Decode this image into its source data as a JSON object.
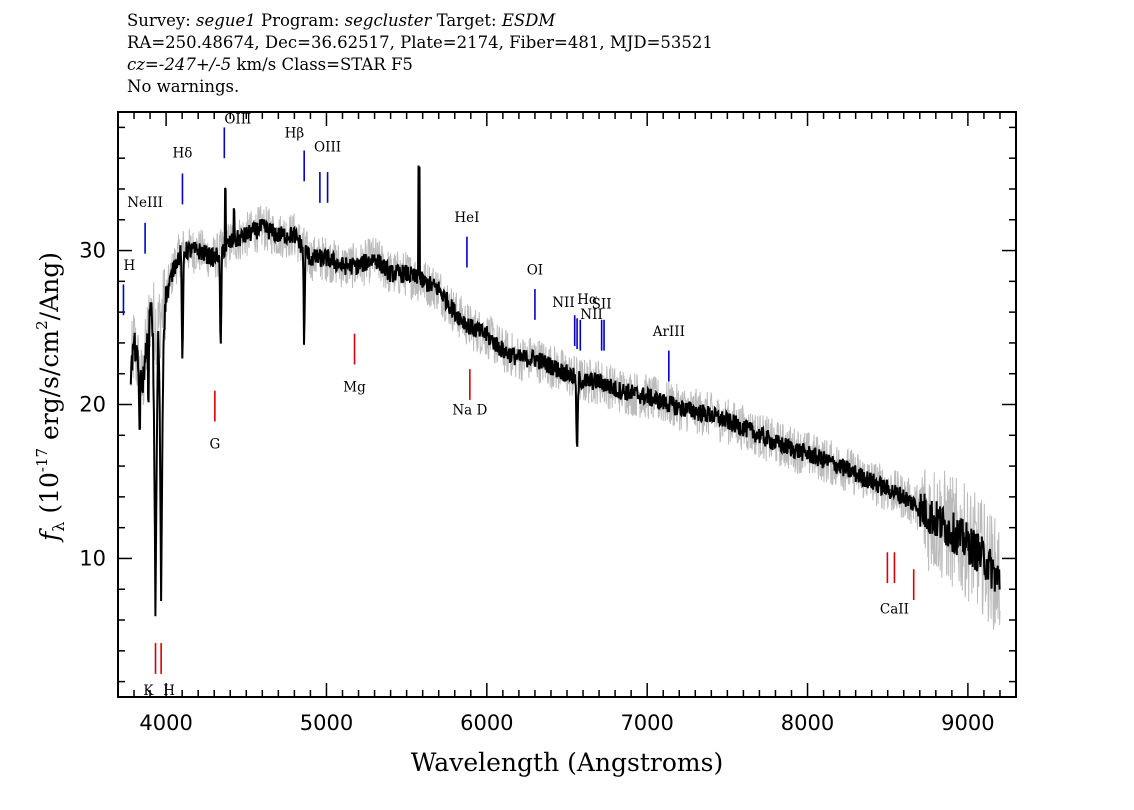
{
  "header": {
    "survey_label": "Survey:",
    "survey": "segue1",
    "program_label": "Program:",
    "program": "segcluster",
    "target_label": "Target:",
    "target": "ESDM",
    "line2": "RA=250.48674, Dec=36.62517, Plate=2174, Fiber=481, MJD=53521",
    "cz_label": "cz=",
    "cz": "-247+/-5",
    "line3_rest": " km/s Class=STAR F5",
    "line4": "No warnings."
  },
  "chart_data": {
    "type": "line",
    "xlabel": "Wavelength (Angstroms)",
    "ylabel": "f_λ (10^-17 erg/s/cm^2/Ang)",
    "ylabel_parts": {
      "symbol": "f",
      "sub": "λ",
      "pre": " (10",
      "exp": "-17",
      "mid": " erg/s/cm",
      "exp2": "2",
      "post": "/Ang)"
    },
    "xlim": [
      3700,
      9300
    ],
    "ylim": [
      1,
      39
    ],
    "xticks": [
      4000,
      5000,
      6000,
      7000,
      8000,
      9000
    ],
    "yticks": [
      10,
      20,
      30
    ],
    "x_tick_labels": [
      "4000",
      "5000",
      "6000",
      "7000",
      "8000",
      "9000"
    ],
    "y_tick_labels": [
      "10",
      "20",
      "30"
    ],
    "series": [
      {
        "style": "gray-noise",
        "color": "#bbbbbb",
        "anchors": [
          [
            3780,
            22
          ],
          [
            3800,
            24
          ],
          [
            3850,
            21
          ],
          [
            3900,
            26
          ],
          [
            3950,
            25
          ],
          [
            4000,
            27
          ],
          [
            4050,
            29
          ],
          [
            4100,
            30
          ],
          [
            4200,
            30
          ],
          [
            4300,
            29.5
          ],
          [
            4400,
            30.5
          ],
          [
            4500,
            31
          ],
          [
            4600,
            31.5
          ],
          [
            4700,
            31
          ],
          [
            4800,
            31
          ],
          [
            4900,
            29.5
          ],
          [
            5000,
            29.5
          ],
          [
            5100,
            29
          ],
          [
            5200,
            29
          ],
          [
            5300,
            29.5
          ],
          [
            5400,
            28.5
          ],
          [
            5500,
            28.5
          ],
          [
            5600,
            28
          ],
          [
            5700,
            27.5
          ],
          [
            5800,
            26
          ],
          [
            5900,
            25
          ],
          [
            6000,
            24.5
          ],
          [
            6100,
            23.5
          ],
          [
            6200,
            23
          ],
          [
            6300,
            23
          ],
          [
            6400,
            22.5
          ],
          [
            6500,
            22
          ],
          [
            6600,
            21.5
          ],
          [
            6700,
            21.5
          ],
          [
            6800,
            21
          ],
          [
            7000,
            20.5
          ],
          [
            7200,
            19.8
          ],
          [
            7400,
            19.3
          ],
          [
            7600,
            18.5
          ],
          [
            7800,
            17.5
          ],
          [
            8000,
            16.8
          ],
          [
            8200,
            16
          ],
          [
            8400,
            15
          ],
          [
            8600,
            14
          ],
          [
            8800,
            12.5
          ],
          [
            9000,
            11
          ],
          [
            9100,
            10
          ],
          [
            9200,
            8.5
          ]
        ],
        "noise_amplitude": 1.5
      },
      {
        "style": "black-flux",
        "color": "#000000",
        "anchors": [
          [
            3780,
            22
          ],
          [
            3800,
            24
          ],
          [
            3850,
            21
          ],
          [
            3900,
            26
          ],
          [
            3950,
            25
          ],
          [
            4000,
            27
          ],
          [
            4050,
            29
          ],
          [
            4100,
            30
          ],
          [
            4200,
            30
          ],
          [
            4300,
            29.5
          ],
          [
            4400,
            30.5
          ],
          [
            4500,
            31
          ],
          [
            4600,
            31.5
          ],
          [
            4700,
            31
          ],
          [
            4800,
            31
          ],
          [
            4900,
            29.5
          ],
          [
            5000,
            29.5
          ],
          [
            5100,
            29
          ],
          [
            5200,
            29
          ],
          [
            5300,
            29.5
          ],
          [
            5400,
            28.5
          ],
          [
            5500,
            28.5
          ],
          [
            5600,
            28
          ],
          [
            5700,
            27.5
          ],
          [
            5800,
            26
          ],
          [
            5900,
            25
          ],
          [
            6000,
            24.5
          ],
          [
            6100,
            23.5
          ],
          [
            6200,
            23
          ],
          [
            6300,
            23
          ],
          [
            6400,
            22.5
          ],
          [
            6500,
            22
          ],
          [
            6600,
            21.5
          ],
          [
            6700,
            21.5
          ],
          [
            6800,
            21
          ],
          [
            7000,
            20.5
          ],
          [
            7200,
            19.8
          ],
          [
            7400,
            19.3
          ],
          [
            7600,
            18.5
          ],
          [
            7800,
            17.5
          ],
          [
            8000,
            16.8
          ],
          [
            8200,
            16
          ],
          [
            8400,
            15
          ],
          [
            8600,
            14
          ],
          [
            8800,
            12.5
          ],
          [
            9000,
            11
          ],
          [
            9100,
            10
          ],
          [
            9200,
            8.5
          ]
        ],
        "absorption": [
          [
            3934,
            5,
            22
          ],
          [
            3969,
            6.5,
            22
          ],
          [
            4102,
            21,
            12
          ],
          [
            4340,
            22.5,
            12
          ],
          [
            4861,
            22.5,
            10
          ],
          [
            6563,
            16,
            14
          ],
          [
            3835,
            17,
            8
          ],
          [
            3889,
            18,
            8
          ]
        ],
        "spikes": [
          [
            5577,
            35.5
          ],
          [
            4370,
            34
          ],
          [
            4423,
            33
          ]
        ],
        "noise_amplitude": 0.6
      }
    ],
    "emission_lines": [
      {
        "label": "H",
        "x": 3734,
        "y0": 25.8,
        "y1": 27.8,
        "ly": 29,
        "anchor": "start"
      },
      {
        "label": "NeIII",
        "x": 3869,
        "y0": 29.8,
        "y1": 31.8,
        "ly": 33.1,
        "anchor": "middle"
      },
      {
        "label": "Hδ",
        "x": 4102,
        "y0": 33.0,
        "y1": 35.0,
        "ly": 36.3,
        "anchor": "middle"
      },
      {
        "label": "OIII",
        "x": 4363,
        "y0": 36.0,
        "y1": 38.0,
        "ly": 38.5,
        "anchor": "start"
      },
      {
        "label": "Hβ",
        "x": 4861,
        "y0": 34.5,
        "y1": 36.5,
        "ly": 37.6,
        "anchor": "end"
      },
      {
        "label": "OIII",
        "x": 4959,
        "y0": 33.1,
        "y1": 35.1,
        "ly": null,
        "anchor": "middle"
      },
      {
        "label": "OIII",
        "x": 5007,
        "y0": 33.1,
        "y1": 35.1,
        "ly": 36.7,
        "anchor": "middle"
      },
      {
        "label": "HeI",
        "x": 5876,
        "y0": 28.9,
        "y1": 30.9,
        "ly": 32.1,
        "anchor": "middle"
      },
      {
        "label": "OI",
        "x": 6300,
        "y0": 25.5,
        "y1": 27.5,
        "ly": 28.7,
        "anchor": "middle"
      },
      {
        "label": "NII",
        "x": 6548,
        "y0": 23.8,
        "y1": 25.8,
        "ly": 26.6,
        "anchor": "end"
      },
      {
        "label": "Hα",
        "x": 6563,
        "y0": 23.6,
        "y1": 25.6,
        "ly": 26.8,
        "anchor": "start"
      },
      {
        "label": "NII",
        "x": 6583,
        "y0": 23.5,
        "y1": 25.5,
        "ly": 25.8,
        "anchor": "start"
      },
      {
        "label": "SII",
        "x": 6716,
        "y0": 23.5,
        "y1": 25.5,
        "ly": 26.5,
        "anchor": "middle"
      },
      {
        "label": "SII",
        "x": 6731,
        "y0": 23.5,
        "y1": 25.5,
        "ly": null,
        "anchor": "middle"
      },
      {
        "label": "ArIII",
        "x": 7135,
        "y0": 21.5,
        "y1": 23.5,
        "ly": 24.7,
        "anchor": "middle"
      }
    ],
    "absorption_lines": [
      {
        "label": "K",
        "x": 3934,
        "y0": 2.5,
        "y1": 4.5,
        "ly": 1.4,
        "anchor": "end"
      },
      {
        "label": "H",
        "x": 3969,
        "y0": 2.5,
        "y1": 4.5,
        "ly": 1.4,
        "anchor": "start"
      },
      {
        "label": "G",
        "x": 4304,
        "y0": 18.9,
        "y1": 20.9,
        "ly": 17.4,
        "anchor": "middle"
      },
      {
        "label": "Mg",
        "x": 5175,
        "y0": 22.6,
        "y1": 24.6,
        "ly": 21.1,
        "anchor": "middle"
      },
      {
        "label": "Na D",
        "x": 5894,
        "y0": 20.3,
        "y1": 22.3,
        "ly": 19.6,
        "anchor": "middle"
      },
      {
        "label": "CaII",
        "x": 8498,
        "y0": 8.4,
        "y1": 10.4,
        "ly": null,
        "anchor": "middle"
      },
      {
        "label": "CaII",
        "x": 8542,
        "y0": 8.4,
        "y1": 10.4,
        "ly": 6.7,
        "anchor": "middle"
      },
      {
        "label": "CaII",
        "x": 8662,
        "y0": 7.3,
        "y1": 9.3,
        "ly": null,
        "anchor": "middle"
      }
    ],
    "colors": {
      "emission": "#0000cc",
      "absorption": "#dd0000",
      "noise": "#bbbbbb",
      "flux": "#000000"
    }
  }
}
